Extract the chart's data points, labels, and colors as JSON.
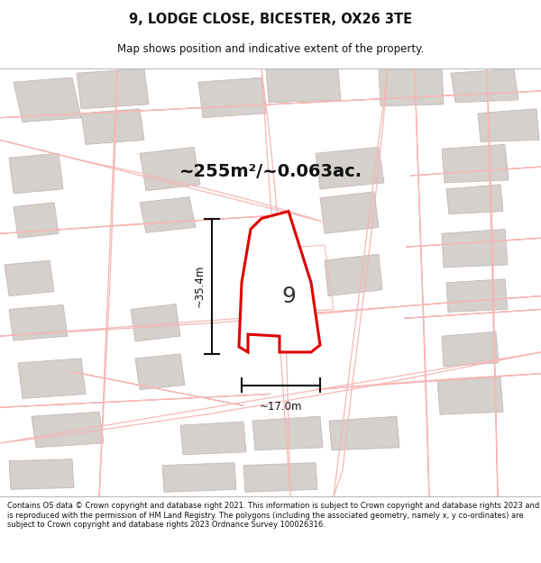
{
  "title": "9, LODGE CLOSE, BICESTER, OX26 3TE",
  "subtitle": "Map shows position and indicative extent of the property.",
  "area_text": "~255m²/~0.063ac.",
  "width_label": "~17.0m",
  "height_label": "~35.4m",
  "plot_number": "9",
  "footer": "Contains OS data © Crown copyright and database right 2021. This information is subject to Crown copyright and database rights 2023 and is reproduced with the permission of HM Land Registry. The polygons (including the associated geometry, namely x, y co-ordinates) are subject to Crown copyright and database rights 2023 Ordnance Survey 100026316.",
  "map_bg": "#f0efec",
  "polygon_color": "#dd0000",
  "parcel_color": "#f5b8b8",
  "building_color": "#d4d0cb",
  "building_stroke": "#c8b8b8",
  "title_color": "#111111",
  "footer_color": "#111111",
  "white_bg": "#ffffff",
  "plot_fill": "#ffffff",
  "dim_line_color": "#111111"
}
